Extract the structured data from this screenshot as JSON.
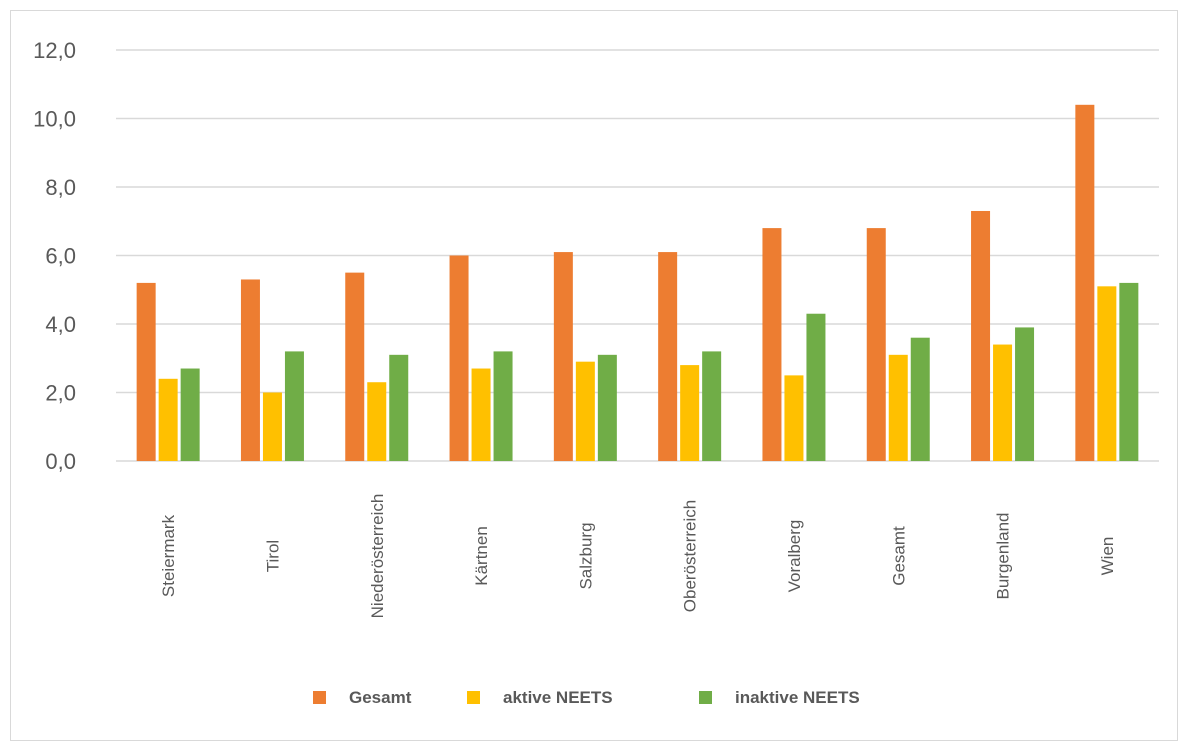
{
  "chart_data": {
    "type": "bar",
    "title": "",
    "xlabel": "",
    "ylabel": "",
    "ylim": [
      0,
      12
    ],
    "yticks": [
      "0,0",
      "2,0",
      "4,0",
      "6,0",
      "8,0",
      "10,0",
      "12,0"
    ],
    "grid": true,
    "legend_position": "bottom",
    "categories": [
      "Steiermark",
      "Tirol",
      "Niederösterreich",
      "Kärtnen",
      "Salzburg",
      "Oberösterreich",
      "Voralberg",
      "Gesamt",
      "Burgenland",
      "Wien"
    ],
    "series": [
      {
        "name": "Gesamt",
        "color": "#ED7D31",
        "values": [
          5.2,
          5.3,
          5.5,
          6.0,
          6.1,
          6.1,
          6.8,
          6.8,
          7.3,
          10.4
        ]
      },
      {
        "name": "aktive NEETS",
        "color": "#FFC000",
        "values": [
          2.4,
          2.0,
          2.3,
          2.7,
          2.9,
          2.8,
          2.5,
          3.1,
          3.4,
          5.1
        ]
      },
      {
        "name": "inaktive NEETS",
        "color": "#70AD47",
        "values": [
          2.7,
          3.2,
          3.1,
          3.2,
          3.1,
          3.2,
          4.3,
          3.6,
          3.9,
          5.2
        ]
      }
    ]
  }
}
